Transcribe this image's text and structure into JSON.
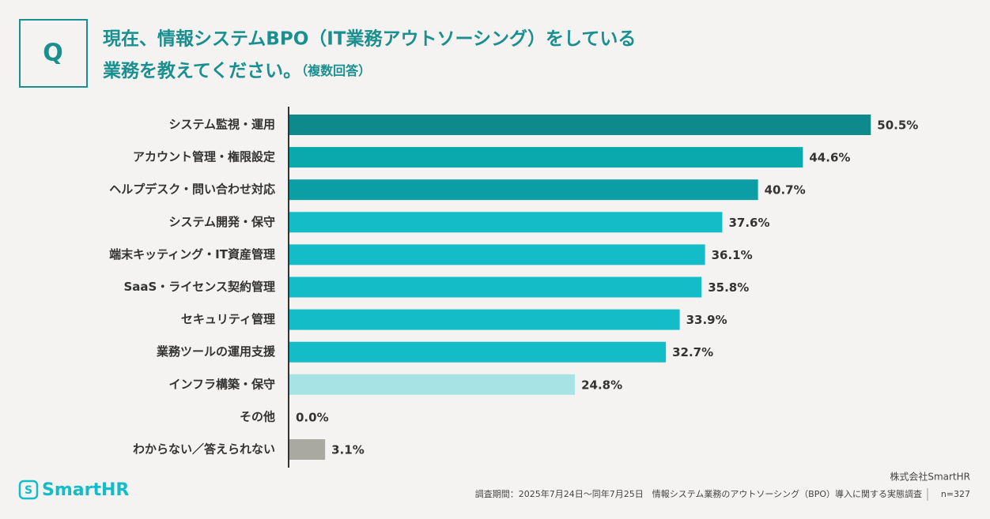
{
  "header": {
    "q": "Q",
    "title_line1": "現在、情報システムBPO（IT業務アウトソーシング）をしている",
    "title_line2": "業務を教えてください。",
    "title_note": "（複数回答）"
  },
  "chart_data": {
    "type": "hbar",
    "categories": [
      "システム監視・運用",
      "アカウント管理・権限設定",
      "ヘルプデスク・問い合わせ対応",
      "システム開発・保守",
      "端末キッティング・IT資産管理",
      "SaaS・ライセンス契約管理",
      "セキュリティ管理",
      "業務ツールの運用支援",
      "インフラ構築・保守",
      "その他",
      "わからない／答えられない"
    ],
    "values": [
      50.5,
      44.6,
      40.7,
      37.6,
      36.1,
      35.8,
      33.9,
      32.7,
      24.8,
      0.0,
      3.1
    ],
    "value_labels": [
      "50.5%",
      "44.6%",
      "40.7%",
      "37.6%",
      "36.1%",
      "35.8%",
      "33.9%",
      "32.7%",
      "24.8%",
      "0.0%",
      "3.1%"
    ],
    "colors": [
      "#0e8a8c",
      "#0aa9ad",
      "#0b9ea5",
      "#13bcc6",
      "#13bcc6",
      "#13bcc6",
      "#13bcc6",
      "#13bcc6",
      "#a7e3e4",
      "#13bcc6",
      "#a9a8a1"
    ]
  },
  "footer": {
    "logo": "SmartHR",
    "company": "株式会社SmartHR",
    "note": "調査期間：2025年7月24日～同年7月25日　情報システム業務のアウトソーシング（BPO）導入に関する実態調査",
    "n": "n=327"
  }
}
